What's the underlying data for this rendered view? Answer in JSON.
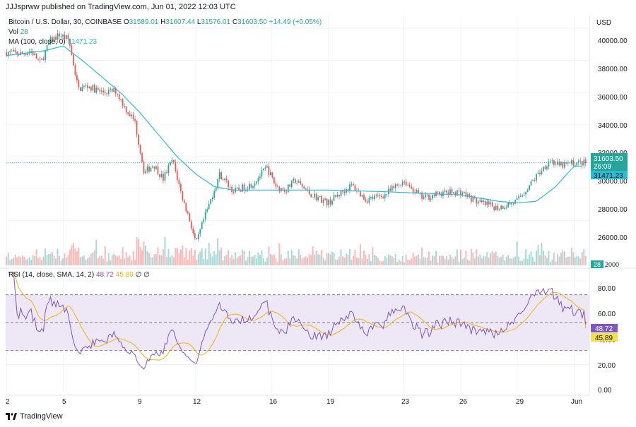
{
  "header": {
    "text": "JJJsprww published on TradingView.com, Jun 01, 2022 12:03 UTC"
  },
  "legend": {
    "symbol": "Bitcoin / U.S. Dollar, 30, COINBASE",
    "ohlc": {
      "o_label": "O",
      "o": "31589.01",
      "h_label": "H",
      "h": "31607.44",
      "l_label": "L",
      "l": "31576.01",
      "c_label": "C",
      "c": "31603.50",
      "change": "+14.49 (+0.05%)"
    },
    "vol_label": "Vol",
    "vol_value": "28",
    "ma_label": "MA (100, close, 0)",
    "ma_value": "31471.23"
  },
  "rsi_legend": {
    "label": "RSI (14, close, SMA, 14, 2)",
    "rsi_value": "48.72",
    "ma_value": "45.89",
    "tail": "∅ ∅"
  },
  "price_axis": {
    "currency": "USD",
    "labels": [
      "40000.00",
      "38000.00",
      "36000.00",
      "34000.00",
      "32000.00",
      "30000.00",
      "28000.00",
      "26000.00"
    ]
  },
  "price_badges": {
    "last_price": "31603.50",
    "countdown": "26:09",
    "ma": "31471.23",
    "volume": "28",
    "volume_cut": "2000"
  },
  "rsi_axis": {
    "labels": [
      "80.00",
      "60.00",
      "40.00",
      "20.00",
      "0.00"
    ]
  },
  "rsi_badges": {
    "rsi": "48.72",
    "ma": "45.89"
  },
  "time_axis": {
    "labels": [
      "2",
      "5",
      "9",
      "12",
      "16",
      "19",
      "23",
      "26",
      "29",
      "Jun"
    ]
  },
  "footer": {
    "brand": "TradingView"
  },
  "colors": {
    "up": "#26a69a",
    "down": "#ef5350",
    "ma": "#2bbbd2",
    "rsi": "#7e57c2",
    "rsi_ma": "#f4b400",
    "band": "#ede7f6",
    "grid": "#f0f3fa"
  },
  "chart_data": {
    "type": "candlestick",
    "symbol": "Bitcoin / U.S. Dollar",
    "interval": "30",
    "exchange": "COINBASE",
    "currency": "USD",
    "ylim": [
      25200,
      40800
    ],
    "rsi_ylim": [
      0,
      88
    ],
    "rsi_levels": [
      30,
      50,
      70
    ],
    "x_ticks": [
      "2",
      "5",
      "9",
      "12",
      "16",
      "19",
      "23",
      "26",
      "29",
      "Jun"
    ],
    "price_path": [
      [
        "May 2",
        38500
      ],
      [
        "May 3",
        38400
      ],
      [
        "May 3",
        38600
      ],
      [
        "May 4",
        37800
      ],
      [
        "May 4",
        39200
      ],
      [
        "May 5",
        39600
      ],
      [
        "May 5",
        39300
      ],
      [
        "May 6",
        36200
      ],
      [
        "May 6",
        36400
      ],
      [
        "May 7",
        36000
      ],
      [
        "May 8",
        36100
      ],
      [
        "May 8",
        35000
      ],
      [
        "May 9",
        34200
      ],
      [
        "May 9",
        31000
      ],
      [
        "May 10",
        31500
      ],
      [
        "May 10",
        30600
      ],
      [
        "May 11",
        31800
      ],
      [
        "May 11",
        29500
      ],
      [
        "May 12",
        28000
      ],
      [
        "May 12",
        26500
      ],
      [
        "May 12",
        27800
      ],
      [
        "May 13",
        29200
      ],
      [
        "May 13",
        30900
      ],
      [
        "May 14",
        29800
      ],
      [
        "May 15",
        30300
      ],
      [
        "May 16",
        31300
      ],
      [
        "May 16",
        30100
      ],
      [
        "May 17",
        29900
      ],
      [
        "May 17",
        30500
      ],
      [
        "May 18",
        29700
      ],
      [
        "May 19",
        29100
      ],
      [
        "May 20",
        29800
      ],
      [
        "May 20",
        30200
      ],
      [
        "May 21",
        29300
      ],
      [
        "May 22",
        29600
      ],
      [
        "May 23",
        30500
      ],
      [
        "May 24",
        29400
      ],
      [
        "May 25",
        29700
      ],
      [
        "May 26",
        29800
      ],
      [
        "May 27",
        29100
      ],
      [
        "May 28",
        28800
      ],
      [
        "May 29",
        29200
      ],
      [
        "May 30",
        30700
      ],
      [
        "May 31",
        31800
      ],
      [
        "May 31",
        31400
      ],
      [
        "Jun 1",
        31600
      ]
    ],
    "ma_path": [
      [
        "May 2",
        38300
      ],
      [
        "May 4",
        38600
      ],
      [
        "May 5",
        38900
      ],
      [
        "May 6",
        38000
      ],
      [
        "May 8",
        36000
      ],
      [
        "May 9",
        34800
      ],
      [
        "May 10",
        33400
      ],
      [
        "May 11",
        32000
      ],
      [
        "May 12",
        30900
      ],
      [
        "May 13",
        30100
      ],
      [
        "May 14",
        29900
      ],
      [
        "May 16",
        29900
      ],
      [
        "May 19",
        29900
      ],
      [
        "May 22",
        29800
      ],
      [
        "May 24",
        29700
      ],
      [
        "May 26",
        29600
      ],
      [
        "May 28",
        29200
      ],
      [
        "May 29",
        29100
      ],
      [
        "May 30",
        29200
      ],
      [
        "May 31",
        30100
      ],
      [
        "Jun 1",
        31400
      ]
    ],
    "last_price": 31603.5,
    "ma_last": 31471.23,
    "ohlc_last": {
      "open": 31589.01,
      "high": 31607.44,
      "low": 31576.01,
      "close": 31603.5,
      "change": 14.49,
      "change_pct": 0.05
    },
    "rsi_last": 48.72,
    "rsi_ma_last": 45.89,
    "volume_last": 28
  }
}
